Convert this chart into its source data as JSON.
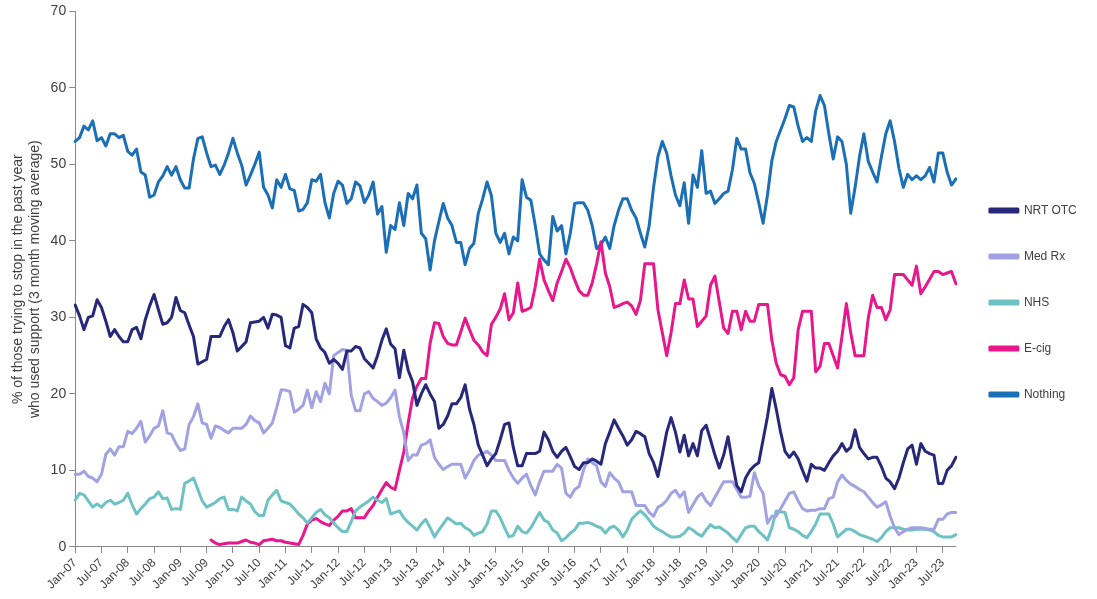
{
  "chart_data": {
    "type": "line",
    "ylabel": "% of those trying to stop in the past year who used support (3 month moving average)",
    "categories": [
      "Jan-07",
      null,
      null,
      null,
      null,
      null,
      "Jul-07",
      null,
      null,
      null,
      null,
      null,
      "Jan-08",
      null,
      null,
      null,
      null,
      null,
      "Jul-08",
      null,
      null,
      null,
      null,
      null,
      "Jan-09",
      null,
      null,
      null,
      null,
      null,
      "Jul-09",
      null,
      null,
      null,
      null,
      null,
      "Jan-10",
      null,
      null,
      null,
      null,
      null,
      "Jul-10",
      null,
      null,
      null,
      null,
      null,
      "Jan-11",
      null,
      null,
      null,
      null,
      null,
      "Jul-11",
      null,
      null,
      null,
      null,
      null,
      "Jan-12",
      null,
      null,
      null,
      null,
      null,
      "Jul-12",
      null,
      null,
      null,
      null,
      null,
      "Jan-13",
      null,
      null,
      null,
      null,
      null,
      "Jul-13",
      null,
      null,
      null,
      null,
      null,
      "Jan-14",
      null,
      null,
      null,
      null,
      null,
      "Jul-14",
      null,
      null,
      null,
      null,
      null,
      "Jan-15",
      null,
      null,
      null,
      null,
      null,
      "Jul-15",
      null,
      null,
      null,
      null,
      null,
      "Jan-16",
      null,
      null,
      null,
      null,
      null,
      "Jul-16",
      null,
      null,
      null,
      null,
      null,
      "Jan-17",
      null,
      null,
      null,
      null,
      null,
      "Jul-17",
      null,
      null,
      null,
      null,
      null,
      "Jan-18",
      null,
      null,
      null,
      null,
      null,
      "Jul-18",
      null,
      null,
      null,
      null,
      null,
      "Jan-19",
      null,
      null,
      null,
      null,
      null,
      "Jul-19",
      null,
      null,
      null,
      null,
      null,
      "Jan-20",
      null,
      null,
      null,
      null,
      null,
      "Jul-20",
      null,
      null,
      null,
      null,
      null,
      "Jan-21",
      null,
      null,
      null,
      null,
      null,
      "Jul-21",
      null,
      null,
      null,
      null,
      null,
      "Jan-22",
      null,
      null,
      null,
      null,
      null,
      "Jul-22",
      null,
      null,
      null,
      null,
      null,
      "Jan-23",
      null,
      null,
      null,
      null,
      null,
      "Jul-23",
      null,
      null,
      null
    ],
    "series": [
      {
        "name": "NRT OTC",
        "color": "#27287a",
        "values": [
          31.6,
          30.2,
          28.4,
          30,
          30.2,
          32.3,
          31.3,
          29.5,
          27.5,
          28.4,
          27.5,
          26.8,
          26.8,
          28.4,
          28.7,
          27.2,
          29.7,
          31.5,
          33,
          31,
          29.1,
          29.3,
          30,
          32.6,
          30.9,
          30.6,
          29,
          27.5,
          23.9,
          24.2,
          24.5,
          27.5,
          27.5,
          27.5,
          28.8,
          29.7,
          28,
          25.6,
          26.2,
          26.8,
          29.3,
          29.4,
          29.5,
          30,
          28.6,
          30.4,
          30.3,
          30,
          26.3,
          26,
          28.6,
          28.8,
          31.7,
          31.3,
          30.6,
          27.2,
          26,
          25.4,
          24,
          24.5,
          24,
          23.2,
          25.6,
          25.6,
          26.2,
          26,
          24.6,
          24,
          23.4,
          25,
          27,
          28.5,
          26.5,
          25.9,
          22.1,
          25.7,
          23.1,
          21.6,
          18.5,
          20,
          21.2,
          20,
          19,
          15.5,
          16,
          17.1,
          18.7,
          18.7,
          19.5,
          21.2,
          18,
          16,
          13.3,
          12,
          10.6,
          11.5,
          12.2,
          14,
          16,
          16.2,
          13,
          10.6,
          10.6,
          12.2,
          12.2,
          12.2,
          12.5,
          15,
          14,
          12.5,
          11.7,
          12.5,
          13,
          11.8,
          10.5,
          10.1,
          11,
          11,
          11.5,
          11.2,
          10.8,
          13.5,
          15,
          16.6,
          15.5,
          14.5,
          13.3,
          14,
          15.1,
          14.8,
          14.4,
          12.2,
          11,
          9.2,
          12,
          15,
          16.9,
          15,
          12.4,
          14.6,
          11.9,
          13.5,
          11.9,
          15.2,
          15.9,
          14,
          12,
          10.3,
          12,
          14.4,
          11,
          8,
          7.2,
          9,
          10,
          10.6,
          11,
          14,
          17,
          20.7,
          18,
          15,
          12.5,
          11.7,
          12.4,
          11.5,
          10,
          8.6,
          10.8,
          10.3,
          10.3,
          10,
          11,
          11.9,
          12.5,
          13.5,
          12.5,
          13,
          15.3,
          13,
          12.2,
          11.5,
          11.7,
          11.7,
          10.5,
          9,
          8.5,
          7.6,
          9,
          11,
          12.8,
          13.3,
          10.8,
          13.5,
          12.5,
          12.2,
          12,
          8.3,
          8.3,
          10,
          10.6,
          11.7
        ]
      },
      {
        "name": "Med Rx",
        "color": "#a2a2e2",
        "values": [
          9.5,
          9.5,
          9.9,
          9.2,
          9,
          8.5,
          9.5,
          12.1,
          12.8,
          12,
          13.1,
          13.1,
          15.1,
          14.8,
          15.5,
          16.4,
          13.7,
          14.5,
          15.5,
          15.8,
          17.8,
          14.9,
          14.7,
          13.5,
          12.6,
          12.8,
          16,
          17,
          18.7,
          16.2,
          16,
          14.2,
          15.8,
          15.6,
          15.2,
          14.9,
          15.5,
          15.5,
          15.5,
          16,
          17.1,
          16.5,
          16.2,
          14.9,
          15.5,
          16.2,
          18.2,
          20.5,
          20.5,
          20.3,
          17.6,
          18,
          18.5,
          20.5,
          18.2,
          20.3,
          19,
          21.4,
          20,
          25,
          25.4,
          25.8,
          25.7,
          19.8,
          17.8,
          17.8,
          20,
          20.3,
          19.4,
          19,
          18.5,
          18.8,
          19.5,
          20.5,
          17,
          14.9,
          11.3,
          12,
          12,
          13.3,
          13.5,
          14,
          11.7,
          10.8,
          10.1,
          10.5,
          10.8,
          10.8,
          10.8,
          9,
          10,
          11.3,
          12,
          12.2,
          12.5,
          12,
          11.3,
          11.3,
          11.3,
          10,
          9,
          8.3,
          9,
          9.5,
          8,
          6.8,
          8.5,
          9.9,
          9.9,
          9.9,
          10.8,
          10.3,
          7,
          6.5,
          7.5,
          7.9,
          10,
          11.5,
          11,
          10.6,
          8.5,
          7.9,
          9.7,
          9,
          8.5,
          7.2,
          7.2,
          7.2,
          5.4,
          5.4,
          5.4,
          4.5,
          4,
          5.2,
          5.5,
          6.1,
          7,
          7.4,
          6.5,
          7.2,
          4.5,
          5.5,
          6.5,
          7,
          6,
          5.4,
          6.5,
          7.5,
          8.5,
          8.5,
          8.5,
          7.5,
          6.5,
          6.5,
          6.6,
          9.7,
          8,
          7,
          3.1,
          4,
          4,
          5,
          6,
          7,
          7.2,
          6,
          5,
          4.7,
          4.8,
          4.8,
          5,
          5,
          6.3,
          6.5,
          8.5,
          9.4,
          8.7,
          8.2,
          7.9,
          7.5,
          7.2,
          6.5,
          5.8,
          5.2,
          5.5,
          5.9,
          4,
          2.5,
          1.6,
          2,
          2.3,
          2.5,
          2.5,
          2.5,
          2.4,
          2.3,
          2.3,
          3.6,
          3.6,
          4.3,
          4.5,
          4.5
        ]
      },
      {
        "name": "NHS",
        "color": "#6fc2c4",
        "values": [
          6.1,
          7,
          6.8,
          6,
          5.2,
          5.6,
          5.2,
          5.8,
          6.1,
          5.6,
          5.8,
          6.1,
          7,
          5.5,
          4.3,
          5,
          5.6,
          6.3,
          6.5,
          7.2,
          6.3,
          6.4,
          4.9,
          5,
          4.9,
          8.3,
          8.6,
          9,
          7.5,
          6,
          5.2,
          5.5,
          5.8,
          6.3,
          6.5,
          4.9,
          4.9,
          4.7,
          6.5,
          6,
          5.6,
          4.6,
          4.1,
          4.1,
          6.1,
          6.8,
          7.4,
          6,
          5.8,
          5.6,
          5,
          4.3,
          3.8,
          3.1,
          3.8,
          4.5,
          4.9,
          4.2,
          3.8,
          3.1,
          2.5,
          2,
          2,
          3.3,
          4.7,
          5.2,
          5.6,
          6,
          6.5,
          6.1,
          5.8,
          6.3,
          4.3,
          4.5,
          4.7,
          3.8,
          3.2,
          2.7,
          2.2,
          3,
          3.6,
          2.5,
          1.3,
          2.2,
          3,
          3.8,
          3.4,
          3,
          3.1,
          2.5,
          2.2,
          1.5,
          1.8,
          2,
          3,
          4.7,
          4.7,
          3.8,
          2.5,
          1.3,
          1.5,
          2.7,
          2,
          1.8,
          2.5,
          3.5,
          4.5,
          3.5,
          3.2,
          2.2,
          1.8,
          0.8,
          1.2,
          1.8,
          2.2,
          3.1,
          3.1,
          3.2,
          3,
          2.7,
          2.5,
          1.8,
          2.5,
          2.7,
          2.2,
          1.3,
          2.2,
          3.6,
          4.2,
          4.7,
          4.2,
          3.5,
          2.7,
          2.3,
          2,
          1.6,
          1.3,
          1.3,
          1.4,
          1.8,
          2.5,
          2.2,
          1.7,
          1.4,
          2.2,
          2.9,
          2.5,
          2.6,
          2.2,
          1.8,
          1.2,
          0.7,
          1.6,
          2.5,
          2.7,
          2.7,
          2,
          1.5,
          0.9,
          2.5,
          4.7,
          4.6,
          4.5,
          2.5,
          2.3,
          2,
          1.5,
          1.2,
          2,
          3,
          4.3,
          4.3,
          4.3,
          3,
          1.3,
          1.8,
          2.3,
          2.3,
          2,
          1.6,
          1.4,
          1.2,
          1,
          0.7,
          1.2,
          2,
          2.5,
          2.5,
          2.5,
          2.3,
          2.2,
          2.2,
          2.3,
          2.3,
          2.3,
          2.2,
          2,
          1.5,
          1.3,
          1.3,
          1.3,
          1.6
        ]
      },
      {
        "name": "E-cig",
        "color": "#e8178c",
        "values": [
          null,
          null,
          null,
          null,
          null,
          null,
          null,
          null,
          null,
          null,
          null,
          null,
          null,
          null,
          null,
          null,
          null,
          null,
          null,
          null,
          null,
          null,
          null,
          null,
          null,
          null,
          null,
          null,
          null,
          null,
          null,
          0.9,
          0.5,
          0.3,
          0.4,
          0.5,
          0.5,
          0.5,
          0.7,
          0.9,
          0.6,
          0.5,
          0.3,
          0.8,
          0.9,
          1,
          0.8,
          0.8,
          0.6,
          0.5,
          0.4,
          0.3,
          1.5,
          3,
          3.5,
          3.7,
          3.3,
          3,
          2.8,
          3.5,
          4,
          4.7,
          4.7,
          5,
          3.8,
          3.8,
          3.8,
          4.7,
          5.4,
          6.5,
          7.5,
          8.4,
          7.8,
          7.5,
          10,
          12.4,
          16.2,
          19.5,
          21,
          22,
          22,
          26.6,
          29.3,
          29.2,
          27.5,
          26.6,
          26.4,
          26.4,
          28.1,
          29.9,
          28.4,
          27,
          26.4,
          25.5,
          25,
          29.1,
          30,
          31.1,
          33.1,
          29.7,
          30.6,
          34.5,
          30.8,
          31,
          31.3,
          34,
          37.6,
          34.9,
          33.5,
          32.2,
          34.5,
          36,
          37.6,
          36.5,
          34.9,
          33.5,
          32.9,
          32.9,
          34.5,
          37,
          39.9,
          35.8,
          34,
          31.3,
          31.5,
          31.8,
          32,
          31.5,
          30.4,
          32.2,
          37,
          37,
          37,
          31,
          28,
          25,
          28,
          31.8,
          31.8,
          34.9,
          32.4,
          32.4,
          28.8,
          29.5,
          30.2,
          34.2,
          35.4,
          32,
          28.6,
          27.9,
          30.8,
          30.8,
          28.4,
          30.8,
          29.5,
          29.5,
          31.7,
          31.7,
          31.7,
          27,
          24,
          22.5,
          22.3,
          21.2,
          22.1,
          28.4,
          30.8,
          30.8,
          30.8,
          22.9,
          23.6,
          26.6,
          26.6,
          25,
          23.4,
          27.5,
          31.8,
          28,
          25,
          25,
          25,
          29.9,
          32.9,
          31.3,
          31.3,
          29.7,
          31,
          35.6,
          35.6,
          35.6,
          34.9,
          34.2,
          36.7,
          33.1,
          34,
          35,
          36,
          36,
          35.6,
          35.8,
          36,
          34.4
        ]
      },
      {
        "name": "Nothing",
        "color": "#1b6fb6",
        "values": [
          53,
          53.5,
          55,
          54.5,
          55.7,
          53.1,
          53.5,
          52.4,
          54,
          54,
          53.5,
          53.8,
          51.7,
          51.2,
          52,
          49,
          48.6,
          45.7,
          46,
          47.7,
          48.5,
          49.7,
          48.6,
          49.7,
          48,
          46.9,
          46.9,
          50.7,
          53.4,
          53.6,
          51.5,
          49.7,
          49.9,
          48.7,
          49.9,
          51.5,
          53.4,
          51.5,
          49.9,
          47.3,
          48.6,
          50,
          51.6,
          47,
          46,
          44.3,
          48,
          47,
          48.7,
          46.8,
          46.6,
          43.9,
          44.1,
          45,
          48,
          47.8,
          48.7,
          45,
          43,
          46.2,
          47.8,
          47.3,
          44.9,
          45.5,
          47.7,
          47.2,
          45,
          46,
          47.7,
          43.5,
          44.5,
          38.5,
          42,
          41.5,
          45,
          42,
          46.2,
          45.5,
          47.3,
          41,
          40.3,
          36.2,
          40,
          42.5,
          44.9,
          43,
          42,
          39.8,
          39.8,
          36.9,
          39,
          39.7,
          43.6,
          45.5,
          47.7,
          45.9,
          41,
          39.8,
          41,
          38.3,
          40.5,
          40,
          48,
          45.7,
          45.3,
          42,
          38.3,
          37.5,
          36.9,
          43.2,
          41.3,
          42,
          38.3,
          41,
          44.9,
          45,
          45,
          44,
          42,
          39,
          39.5,
          40.5,
          39,
          42,
          44,
          45.5,
          45.5,
          44,
          43,
          41,
          39.2,
          42,
          47,
          51,
          53,
          51.5,
          48.5,
          46,
          44.6,
          47.6,
          42.3,
          48.6,
          47,
          51.8,
          46.2,
          46.5,
          44.9,
          45.5,
          46.2,
          46.5,
          49.3,
          53.4,
          52,
          52,
          48.9,
          47.5,
          45,
          42.3,
          46,
          50.5,
          53,
          54.5,
          56,
          57.7,
          57.5,
          55,
          53,
          53.5,
          53,
          57,
          59,
          57.7,
          54,
          50.7,
          53.6,
          53,
          50,
          43.6,
          47,
          51,
          54,
          50.4,
          49,
          47.7,
          51,
          54,
          55.7,
          53,
          49.5,
          47,
          48.7,
          48,
          48.5,
          48,
          48.5,
          49.6,
          47.7,
          51.5,
          51.5,
          49,
          47.3,
          48.1
        ]
      }
    ],
    "ylim": [
      0,
      70
    ],
    "yticks": [
      0,
      10,
      20,
      30,
      40,
      50,
      60,
      70
    ],
    "legend": "right"
  }
}
